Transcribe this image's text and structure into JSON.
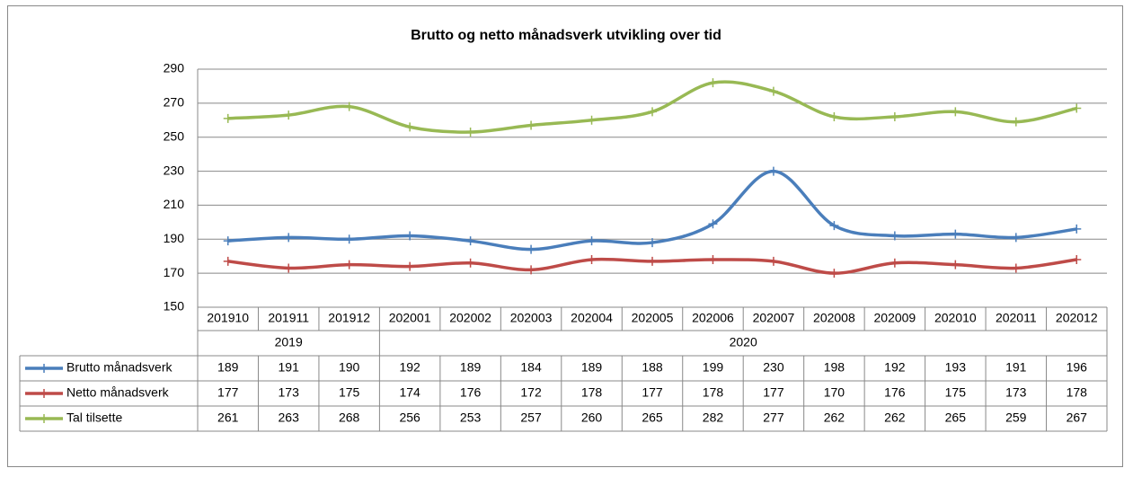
{
  "chart_data": {
    "type": "line",
    "title": "Brutto og netto månadsverk utvikling over tid",
    "category_groups": [
      {
        "label": "2019",
        "categories": [
          "201910",
          "201911",
          "201912"
        ]
      },
      {
        "label": "2020",
        "categories": [
          "202001",
          "202002",
          "202003",
          "202004",
          "202005",
          "202006",
          "202007",
          "202008",
          "202009",
          "202010",
          "202011",
          "202012"
        ]
      }
    ],
    "series": [
      {
        "name": "Brutto månadsverk",
        "color": "#4a7ebb",
        "values": [
          189,
          191,
          190,
          192,
          189,
          184,
          189,
          188,
          199,
          230,
          198,
          192,
          193,
          191,
          196
        ]
      },
      {
        "name": "Netto månadsverk",
        "color": "#be4b48",
        "values": [
          177,
          173,
          175,
          174,
          176,
          172,
          178,
          177,
          178,
          177,
          170,
          176,
          175,
          173,
          178
        ]
      },
      {
        "name": "Tal tilsette",
        "color": "#98b954",
        "values": [
          261,
          263,
          268,
          256,
          253,
          257,
          260,
          265,
          282,
          277,
          262,
          262,
          265,
          259,
          267
        ]
      }
    ],
    "ylim": [
      150,
      290
    ],
    "yticks": [
      150,
      170,
      190,
      210,
      230,
      250,
      270,
      290
    ],
    "grid": true,
    "smooth": true
  }
}
